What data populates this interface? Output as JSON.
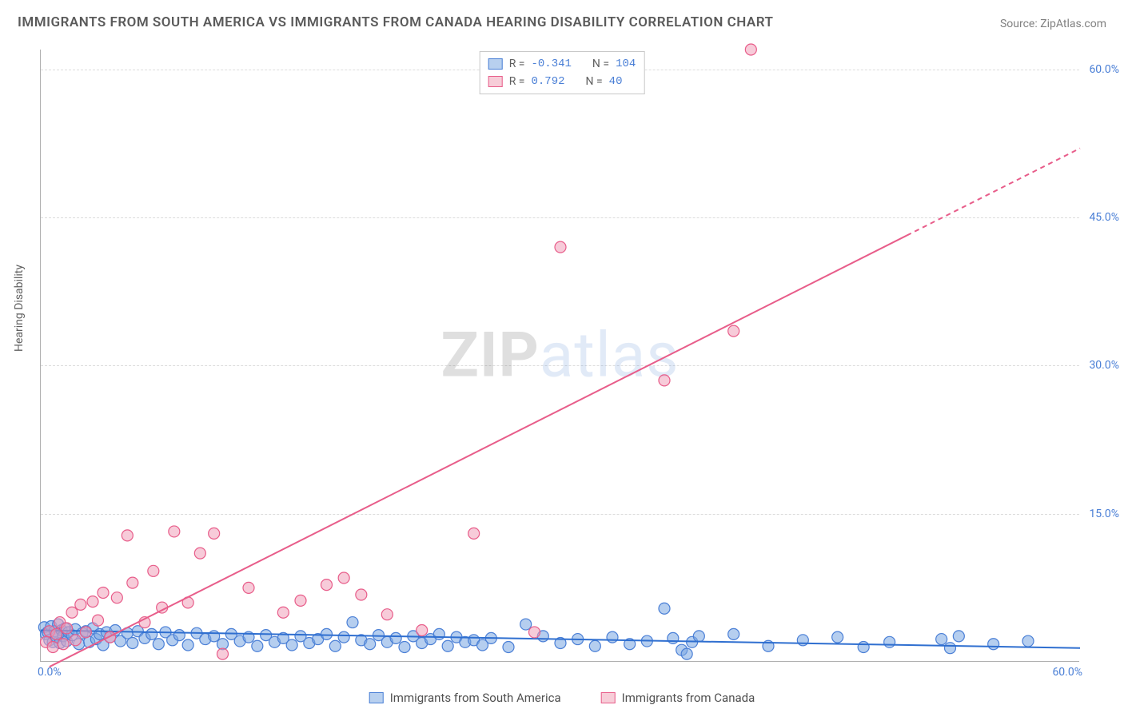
{
  "title": "IMMIGRANTS FROM SOUTH AMERICA VS IMMIGRANTS FROM CANADA HEARING DISABILITY CORRELATION CHART",
  "source": "Source: ZipAtlas.com",
  "ylabel": "Hearing Disability",
  "watermark": {
    "part1": "ZIP",
    "part2": "atlas"
  },
  "axes": {
    "xlim": [
      0,
      60
    ],
    "ylim": [
      0,
      62
    ],
    "xtick_min_label": "0.0%",
    "xtick_max_label": "60.0%",
    "yticks": [
      {
        "v": 15,
        "label": "15.0%"
      },
      {
        "v": 30,
        "label": "30.0%"
      },
      {
        "v": 45,
        "label": "45.0%"
      },
      {
        "v": 60,
        "label": "60.0%"
      }
    ],
    "grid_color": "#dcdcdc",
    "axis_color": "#b0b0b0",
    "tick_font_color": "#4a7fd6",
    "tick_fontsize": 14
  },
  "legend_top": {
    "rows": [
      {
        "swatch_fill": "#b8d0ef",
        "swatch_border": "#4a7fd6",
        "r_label": "R =",
        "r_value": "-0.341",
        "n_label": "N =",
        "n_value": "104"
      },
      {
        "swatch_fill": "#f7cdd8",
        "swatch_border": "#e85d8a",
        "r_label": "R =",
        "r_value": "0.792",
        "n_label": "N =",
        "n_value": "40"
      }
    ]
  },
  "legend_bottom": {
    "items": [
      {
        "swatch_fill": "#b8d0ef",
        "swatch_border": "#4a7fd6",
        "label": "Immigrants from South America"
      },
      {
        "swatch_fill": "#f7cdd8",
        "swatch_border": "#e85d8a",
        "label": "Immigrants from Canada"
      }
    ]
  },
  "series": [
    {
      "name": "south_america",
      "marker_fill": "rgba(120,165,225,0.55)",
      "marker_stroke": "#4a7fd6",
      "marker_radius": 7,
      "line_color": "#2f6fd0",
      "line_width": 2,
      "trend": {
        "x1": 0,
        "y1": 3.2,
        "x2": 60,
        "y2": 1.4,
        "solid_until_x": 60
      },
      "points": [
        [
          0.2,
          3.5
        ],
        [
          0.3,
          2.8
        ],
        [
          0.4,
          3.0
        ],
        [
          0.5,
          2.2
        ],
        [
          0.6,
          3.6
        ],
        [
          0.7,
          2.0
        ],
        [
          0.8,
          3.1
        ],
        [
          0.9,
          2.5
        ],
        [
          1.0,
          3.8
        ],
        [
          1.1,
          1.9
        ],
        [
          1.2,
          3.2
        ],
        [
          1.3,
          2.6
        ],
        [
          1.4,
          3.4
        ],
        [
          1.5,
          2.1
        ],
        [
          1.6,
          3.0
        ],
        [
          1.8,
          2.7
        ],
        [
          2.0,
          3.3
        ],
        [
          2.2,
          1.8
        ],
        [
          2.4,
          2.9
        ],
        [
          2.6,
          3.1
        ],
        [
          2.8,
          2.0
        ],
        [
          3.0,
          3.4
        ],
        [
          3.2,
          2.3
        ],
        [
          3.4,
          2.8
        ],
        [
          3.6,
          1.7
        ],
        [
          3.8,
          3.0
        ],
        [
          4.0,
          2.5
        ],
        [
          4.3,
          3.2
        ],
        [
          4.6,
          2.1
        ],
        [
          5.0,
          2.9
        ],
        [
          5.3,
          1.9
        ],
        [
          5.6,
          3.1
        ],
        [
          6.0,
          2.4
        ],
        [
          6.4,
          2.8
        ],
        [
          6.8,
          1.8
        ],
        [
          7.2,
          3.0
        ],
        [
          7.6,
          2.2
        ],
        [
          8.0,
          2.7
        ],
        [
          8.5,
          1.7
        ],
        [
          9.0,
          2.9
        ],
        [
          9.5,
          2.3
        ],
        [
          10.0,
          2.6
        ],
        [
          10.5,
          1.8
        ],
        [
          11.0,
          2.8
        ],
        [
          11.5,
          2.1
        ],
        [
          12.0,
          2.5
        ],
        [
          12.5,
          1.6
        ],
        [
          13.0,
          2.7
        ],
        [
          13.5,
          2.0
        ],
        [
          14.0,
          2.4
        ],
        [
          14.5,
          1.7
        ],
        [
          15.0,
          2.6
        ],
        [
          15.5,
          1.9
        ],
        [
          16.0,
          2.3
        ],
        [
          16.5,
          2.8
        ],
        [
          17.0,
          1.6
        ],
        [
          17.5,
          2.5
        ],
        [
          18.0,
          4.0
        ],
        [
          18.5,
          2.2
        ],
        [
          19.0,
          1.8
        ],
        [
          19.5,
          2.7
        ],
        [
          20.0,
          2.0
        ],
        [
          20.5,
          2.4
        ],
        [
          21.0,
          1.5
        ],
        [
          21.5,
          2.6
        ],
        [
          22.0,
          1.9
        ],
        [
          22.5,
          2.3
        ],
        [
          23.0,
          2.8
        ],
        [
          23.5,
          1.6
        ],
        [
          24.0,
          2.5
        ],
        [
          24.5,
          2.0
        ],
        [
          25.0,
          2.2
        ],
        [
          25.5,
          1.7
        ],
        [
          26.0,
          2.4
        ],
        [
          27.0,
          1.5
        ],
        [
          28.0,
          3.8
        ],
        [
          29.0,
          2.6
        ],
        [
          30.0,
          1.9
        ],
        [
          31.0,
          2.3
        ],
        [
          32.0,
          1.6
        ],
        [
          33.0,
          2.5
        ],
        [
          34.0,
          1.8
        ],
        [
          35.0,
          2.1
        ],
        [
          36.0,
          5.4
        ],
        [
          36.5,
          2.4
        ],
        [
          37.0,
          1.2
        ],
        [
          37.3,
          0.8
        ],
        [
          37.6,
          2.0
        ],
        [
          38.0,
          2.6
        ],
        [
          40.0,
          2.8
        ],
        [
          42.0,
          1.6
        ],
        [
          44.0,
          2.2
        ],
        [
          46.0,
          2.5
        ],
        [
          47.5,
          1.5
        ],
        [
          49.0,
          2.0
        ],
        [
          52.0,
          2.3
        ],
        [
          52.5,
          1.4
        ],
        [
          53.0,
          2.6
        ],
        [
          55.0,
          1.8
        ],
        [
          57.0,
          2.1
        ]
      ]
    },
    {
      "name": "canada",
      "marker_fill": "rgba(240,160,185,0.55)",
      "marker_stroke": "#e85d8a",
      "marker_radius": 7,
      "line_color": "#e85d8a",
      "line_width": 2,
      "trend": {
        "x1": 0.5,
        "y1": -0.5,
        "x2": 60,
        "y2": 52.0,
        "solid_until_x": 50
      },
      "points": [
        [
          0.3,
          2.0
        ],
        [
          0.5,
          3.1
        ],
        [
          0.7,
          1.5
        ],
        [
          0.9,
          2.8
        ],
        [
          1.1,
          4.0
        ],
        [
          1.3,
          1.8
        ],
        [
          1.5,
          3.4
        ],
        [
          1.8,
          5.0
        ],
        [
          2.0,
          2.2
        ],
        [
          2.3,
          5.8
        ],
        [
          2.6,
          3.0
        ],
        [
          3.0,
          6.1
        ],
        [
          3.3,
          4.2
        ],
        [
          3.6,
          7.0
        ],
        [
          4.0,
          2.5
        ],
        [
          4.4,
          6.5
        ],
        [
          5.0,
          12.8
        ],
        [
          5.3,
          8.0
        ],
        [
          6.0,
          4.0
        ],
        [
          6.5,
          9.2
        ],
        [
          7.0,
          5.5
        ],
        [
          7.7,
          13.2
        ],
        [
          8.5,
          6.0
        ],
        [
          9.2,
          11.0
        ],
        [
          10.0,
          13.0
        ],
        [
          10.5,
          0.8
        ],
        [
          12.0,
          7.5
        ],
        [
          14.0,
          5.0
        ],
        [
          15.0,
          6.2
        ],
        [
          16.5,
          7.8
        ],
        [
          17.5,
          8.5
        ],
        [
          18.5,
          6.8
        ],
        [
          20.0,
          4.8
        ],
        [
          22.0,
          3.2
        ],
        [
          25.0,
          13.0
        ],
        [
          28.5,
          3.0
        ],
        [
          30.0,
          42.0
        ],
        [
          36.0,
          28.5
        ],
        [
          40.0,
          33.5
        ],
        [
          41.0,
          62.0
        ]
      ]
    }
  ]
}
